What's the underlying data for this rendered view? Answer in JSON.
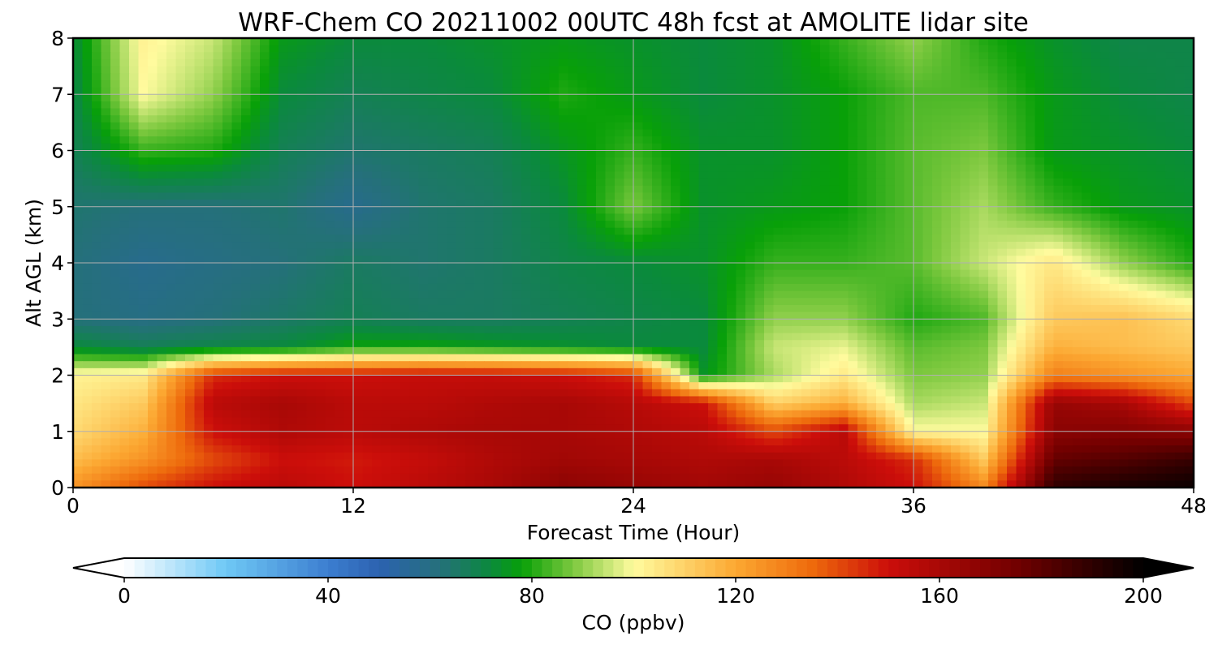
{
  "chart_data": {
    "type": "heatmap",
    "subtype": "filled-contour time-height cross section",
    "title": "WRF-Chem CO  20211002 00UTC 48h fcst at AMOLITE lidar site",
    "xlabel": "Forecast Time (Hour)",
    "ylabel": "Alt AGL (km)",
    "xlim": [
      0,
      48
    ],
    "ylim": [
      0,
      8
    ],
    "xticks": [
      0,
      12,
      24,
      36,
      48
    ],
    "yticks": [
      0,
      1,
      2,
      3,
      4,
      5,
      6,
      7,
      8
    ],
    "grid": true,
    "x": [
      0,
      3,
      6,
      9,
      12,
      15,
      18,
      21,
      24,
      27,
      30,
      33,
      36,
      39,
      42,
      45,
      48
    ],
    "y": [
      0,
      0.5,
      1,
      1.5,
      2,
      2.5,
      3,
      4,
      5,
      6,
      7,
      8
    ],
    "z": [
      [
        125,
        140,
        150,
        155,
        150,
        155,
        160,
        168,
        165,
        162,
        165,
        158,
        150,
        128,
        190,
        195,
        198
      ],
      [
        115,
        125,
        140,
        150,
        148,
        152,
        158,
        162,
        160,
        158,
        160,
        155,
        145,
        112,
        178,
        182,
        188
      ],
      [
        108,
        118,
        150,
        158,
        155,
        158,
        160,
        160,
        158,
        155,
        140,
        155,
        100,
        100,
        168,
        170,
        168
      ],
      [
        105,
        112,
        155,
        160,
        155,
        155,
        158,
        160,
        156,
        150,
        110,
        118,
        92,
        95,
        165,
        160,
        140
      ],
      [
        102,
        104,
        145,
        150,
        150,
        152,
        152,
        150,
        145,
        75,
        92,
        104,
        88,
        90,
        130,
        125,
        120
      ],
      [
        72,
        68,
        70,
        72,
        78,
        78,
        76,
        74,
        72,
        72,
        95,
        98,
        85,
        88,
        118,
        115,
        112
      ],
      [
        62,
        60,
        62,
        65,
        68,
        66,
        66,
        68,
        70,
        72,
        90,
        90,
        80,
        84,
        112,
        114,
        108
      ],
      [
        62,
        58,
        60,
        62,
        66,
        64,
        66,
        70,
        72,
        74,
        82,
        82,
        85,
        95,
        105,
        90,
        80
      ],
      [
        64,
        62,
        62,
        64,
        58,
        64,
        66,
        72,
        88,
        74,
        76,
        78,
        85,
        92,
        82,
        76,
        74
      ],
      [
        68,
        82,
        80,
        68,
        64,
        66,
        68,
        75,
        82,
        74,
        74,
        78,
        85,
        88,
        76,
        74,
        72
      ],
      [
        70,
        100,
        90,
        72,
        68,
        70,
        72,
        80,
        76,
        72,
        74,
        78,
        84,
        84,
        76,
        72,
        70
      ],
      [
        72,
        102,
        95,
        76,
        72,
        72,
        74,
        76,
        74,
        72,
        74,
        82,
        90,
        80,
        74,
        70,
        70
      ]
    ],
    "colorbar": {
      "label": "CO  (ppbv)",
      "min": 0,
      "max": 200,
      "ticks": [
        0,
        40,
        80,
        120,
        160,
        200
      ],
      "extend": "both",
      "stops": [
        {
          "value": 0,
          "color": "#ffffff"
        },
        {
          "value": 20,
          "color": "#6ec8f5"
        },
        {
          "value": 40,
          "color": "#3c7ed0"
        },
        {
          "value": 50,
          "color": "#2c62b0"
        },
        {
          "value": 62,
          "color": "#25707a"
        },
        {
          "value": 72,
          "color": "#0a8a3c"
        },
        {
          "value": 78,
          "color": "#08a008"
        },
        {
          "value": 88,
          "color": "#7cc83e"
        },
        {
          "value": 100,
          "color": "#fffb9e"
        },
        {
          "value": 120,
          "color": "#fca832"
        },
        {
          "value": 135,
          "color": "#ee6a0c"
        },
        {
          "value": 150,
          "color": "#cc0e0a"
        },
        {
          "value": 175,
          "color": "#720000"
        },
        {
          "value": 200,
          "color": "#000000"
        }
      ]
    }
  }
}
